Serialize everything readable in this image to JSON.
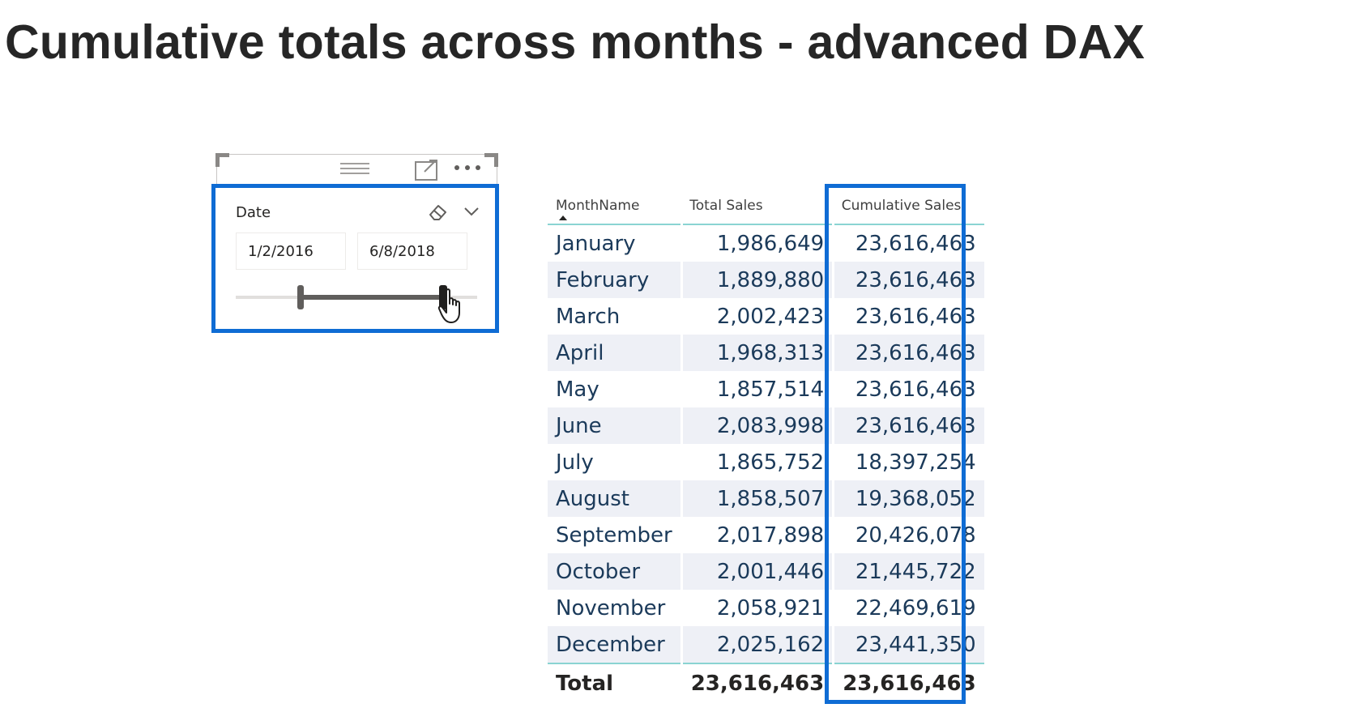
{
  "page": {
    "title": "Cumulative totals across months - advanced DAX"
  },
  "colors": {
    "highlight": "#0f6cd4",
    "header_rule": "#8ad4d2",
    "row_band": "#eef0f6",
    "cell_text": "#1b3a5a"
  },
  "slicer": {
    "label": "Date",
    "start_date": "1/2/2016",
    "end_date": "6/8/2018",
    "range_start_fraction": 0.27,
    "range_end_fraction": 0.86,
    "icons": [
      "grip-icon",
      "focus-mode-icon",
      "more-options-icon",
      "eraser-icon",
      "chevron-down-icon",
      "hand-cursor-icon"
    ]
  },
  "table": {
    "headers": {
      "month": "MonthName",
      "total": "Total Sales",
      "cumulative": "Cumulative Sales"
    },
    "rows": [
      {
        "month": "January",
        "total": "1,986,649",
        "cumulative": "23,616,463"
      },
      {
        "month": "February",
        "total": "1,889,880",
        "cumulative": "23,616,463"
      },
      {
        "month": "March",
        "total": "2,002,423",
        "cumulative": "23,616,463"
      },
      {
        "month": "April",
        "total": "1,968,313",
        "cumulative": "23,616,463"
      },
      {
        "month": "May",
        "total": "1,857,514",
        "cumulative": "23,616,463"
      },
      {
        "month": "June",
        "total": "2,083,998",
        "cumulative": "23,616,463"
      },
      {
        "month": "July",
        "total": "1,865,752",
        "cumulative": "18,397,254"
      },
      {
        "month": "August",
        "total": "1,858,507",
        "cumulative": "19,368,052"
      },
      {
        "month": "September",
        "total": "2,017,898",
        "cumulative": "20,426,078"
      },
      {
        "month": "October",
        "total": "2,001,446",
        "cumulative": "21,445,722"
      },
      {
        "month": "November",
        "total": "2,058,921",
        "cumulative": "22,469,619"
      },
      {
        "month": "December",
        "total": "2,025,162",
        "cumulative": "23,441,350"
      }
    ],
    "footer": {
      "label": "Total",
      "total": "23,616,463",
      "cumulative": "23,616,463"
    }
  }
}
